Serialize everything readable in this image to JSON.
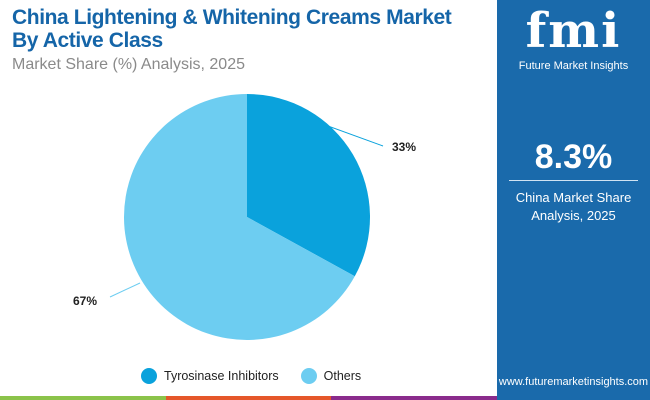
{
  "chart_data": {
    "type": "pie",
    "title": "China Lightening & Whitening Creams Market By Active Class",
    "subtitle": "Market Share (%) Analysis, 2025",
    "categories": [
      "Tyrosinase Inhibitors",
      "Others"
    ],
    "values": [
      33,
      67
    ],
    "labels": [
      "33%",
      "67%"
    ],
    "colors": [
      "#0aa2dc",
      "#6dcdf1"
    ],
    "legend_position": "bottom"
  },
  "header": {
    "title_line1": "China Lightening & Whitening Creams Market",
    "title_line2": "By Active Class",
    "subtitle": "Market Share (%) Analysis, 2025"
  },
  "panel": {
    "logo": "fmi",
    "logo_text": "Future Market Insights",
    "stat": "8.3%",
    "caption_line1": "China Market Share",
    "caption_line2": "Analysis, 2025",
    "url": "www.futuremarketinsights.com"
  },
  "bar_colors": [
    "#8bc34a",
    "#e5572a",
    "#8a2b8c"
  ]
}
